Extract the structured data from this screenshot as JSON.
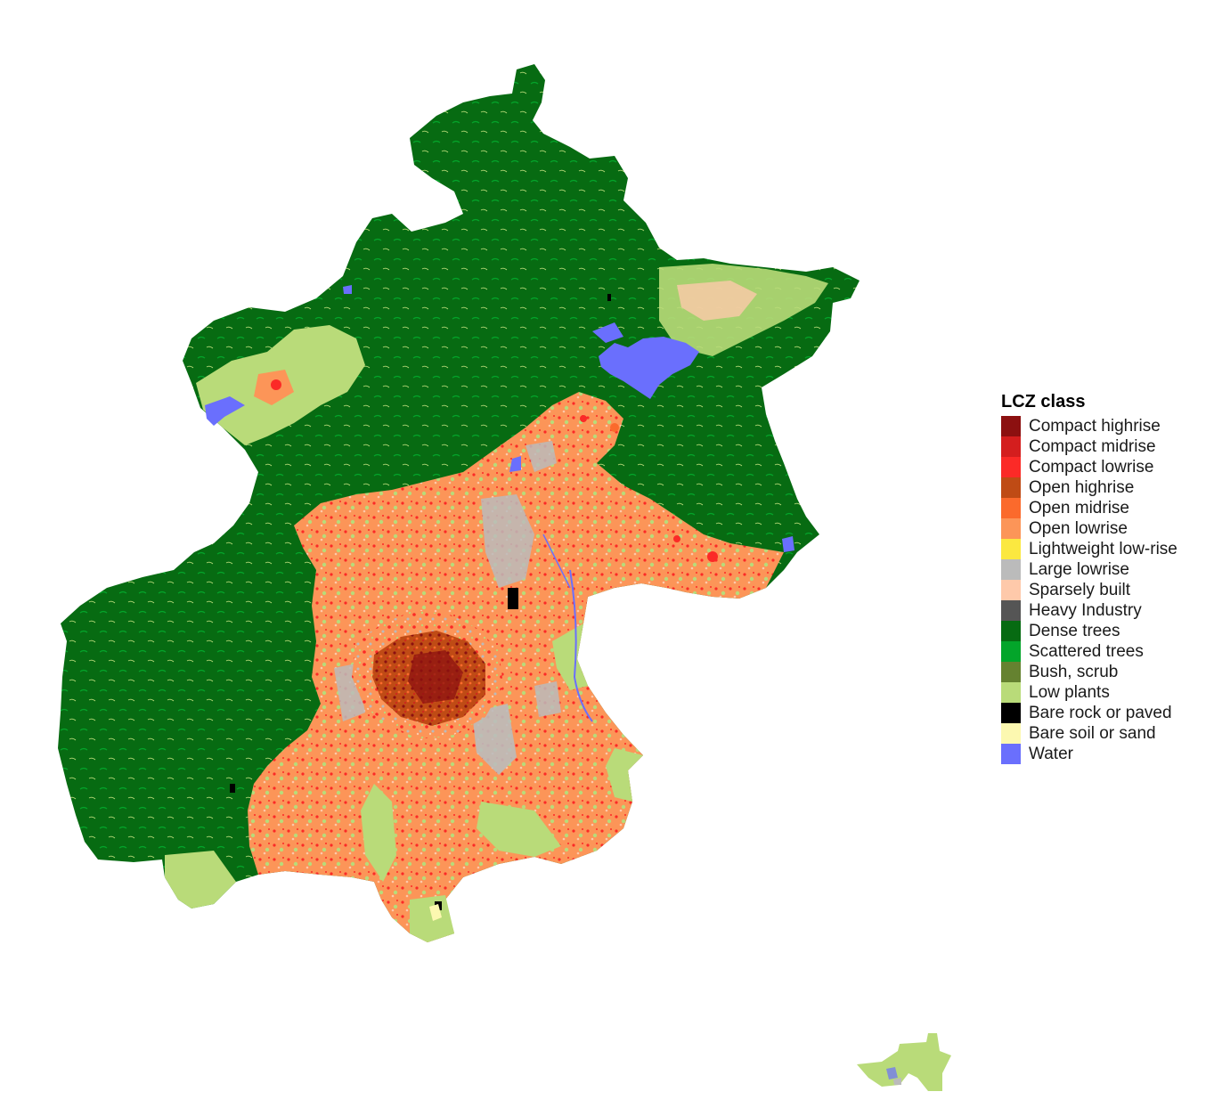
{
  "legend": {
    "title": "LCZ class",
    "items": [
      {
        "label": "Compact highrise",
        "color": "#8c1010"
      },
      {
        "label": "Compact midrise",
        "color": "#d41e1e"
      },
      {
        "label": "Compact lowrise",
        "color": "#fb2a27"
      },
      {
        "label": "Open highrise",
        "color": "#bf4b15"
      },
      {
        "label": "Open midrise",
        "color": "#fb6a2c"
      },
      {
        "label": "Open lowrise",
        "color": "#fc9558"
      },
      {
        "label": "Lightweight low-rise",
        "color": "#fbe840"
      },
      {
        "label": "Large lowrise",
        "color": "#bbbbbb"
      },
      {
        "label": "Sparsely built",
        "color": "#fec9aa"
      },
      {
        "label": "Heavy Industry",
        "color": "#555555"
      },
      {
        "label": "Dense trees",
        "color": "#076b12"
      },
      {
        "label": "Scattered trees",
        "color": "#03a52a"
      },
      {
        "label": "Bush, scrub",
        "color": "#658230"
      },
      {
        "label": "Low plants",
        "color": "#b9db79"
      },
      {
        "label": "Bare rock or paved",
        "color": "#000000"
      },
      {
        "label": "Bare soil or sand",
        "color": "#fcf8b0"
      },
      {
        "label": "Water",
        "color": "#6a6ffd"
      }
    ]
  }
}
